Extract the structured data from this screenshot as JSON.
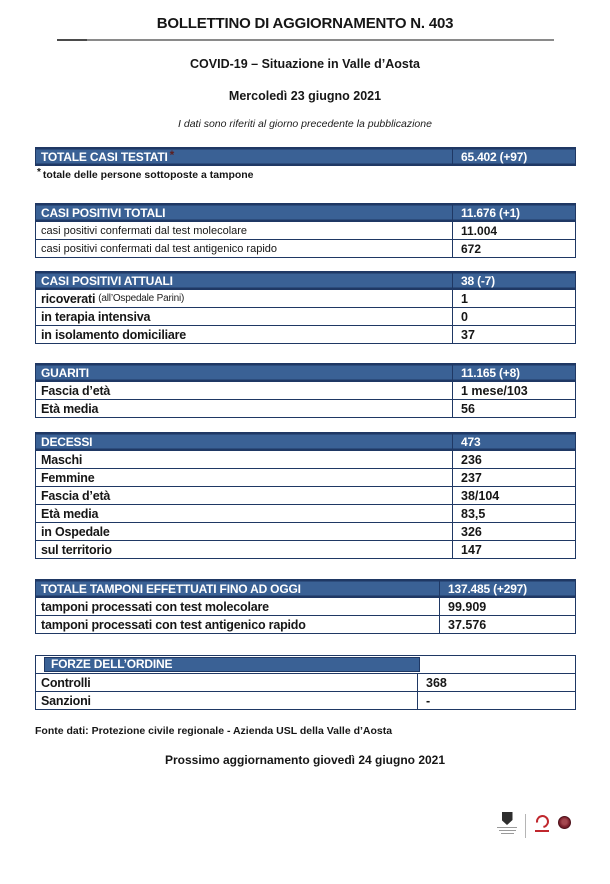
{
  "page": {
    "title": "BOLLETTINO DI AGGIORNAMENTO N. 403",
    "subtitle": "COVID-19 – Situazione in Valle d’Aosta",
    "date_line": "Mercoledì 23 giugno 2021",
    "note": "I dati sono riferiti al giorno precedente la pubblicazione",
    "footnote_symbol": "*",
    "footnote": "totale delle persone sottoposte a tampone",
    "source_line": "Fonte dati: Protezione civile regionale - Azienda USL della Valle d’Aosta",
    "next_update": "Prossimo aggiornamento giovedì 24 giugno 2021"
  },
  "colors": {
    "header_blue": "#3A6195",
    "border_navy": "#1F3864",
    "title_asterisk": "#5d1f1f",
    "usl_red": "#C0272D",
    "emblem_maroon": "#7a1f2b"
  },
  "tables": [
    {
      "name": "totale-casi-testati",
      "title": "TOTALE CASI TESTATI",
      "title_asterisk": "*",
      "value": "65.402 (+97)",
      "rows": []
    },
    {
      "name": "casi-positivi-totali",
      "title": "CASI POSITIVI TOTALI",
      "value": "11.676 (+1)",
      "rows": [
        {
          "label": "casi positivi confermati dal test molecolare",
          "value": "11.004"
        },
        {
          "label": "casi positivi confermati dal test antigenico rapido",
          "value": "672"
        }
      ]
    },
    {
      "name": "casi-positivi-attuali",
      "title": "CASI POSITIVI ATTUALI",
      "value": "38 (-7)",
      "rows": [
        {
          "label": "ricoverati",
          "note": "(all’Ospedale Parini)",
          "value": "1"
        },
        {
          "label": "in terapia intensiva",
          "value": "0"
        },
        {
          "label": "in isolamento domiciliare",
          "value": "37"
        }
      ]
    },
    {
      "name": "guariti",
      "title": "GUARITI",
      "value": "11.165 (+8)",
      "rows": [
        {
          "label": "Fascia d’età",
          "value": "1 mese/103"
        },
        {
          "label": "Età media",
          "value": "56"
        }
      ]
    },
    {
      "name": "decessi",
      "title": "DECESSI",
      "value": "473",
      "rows": [
        {
          "label": "Maschi",
          "value": "236"
        },
        {
          "label": "Femmine",
          "value": "237"
        },
        {
          "label": "Fascia d’età",
          "value": "38/104"
        },
        {
          "label": "Età media",
          "value": "83,5"
        },
        {
          "label": "in Ospedale",
          "value": "326"
        },
        {
          "label": "sul territorio",
          "value": "147"
        }
      ]
    },
    {
      "name": "totale-tamponi-effettuati",
      "title": "TOTALE TAMPONI EFFETTUATI FINO AD OGGI",
      "value": "137.485 (+297)",
      "rows": [
        {
          "label": "tamponi processati con test molecolare",
          "value": "99.909"
        },
        {
          "label": "tamponi processati con test antigenico rapido",
          "value": "37.576"
        }
      ]
    },
    {
      "name": "forze-dellordine",
      "title": "FORZE DELL’ORDINE",
      "value": "",
      "rows": [
        {
          "label": "Controlli",
          "value": "368"
        },
        {
          "label": "Sanzioni",
          "value": "-"
        }
      ]
    }
  ],
  "logos": {
    "items": [
      {
        "name": "regione-valle-daosta-crest"
      },
      {
        "name": "ausl-valle-daosta-logo"
      },
      {
        "name": "emblem-seal"
      }
    ]
  }
}
